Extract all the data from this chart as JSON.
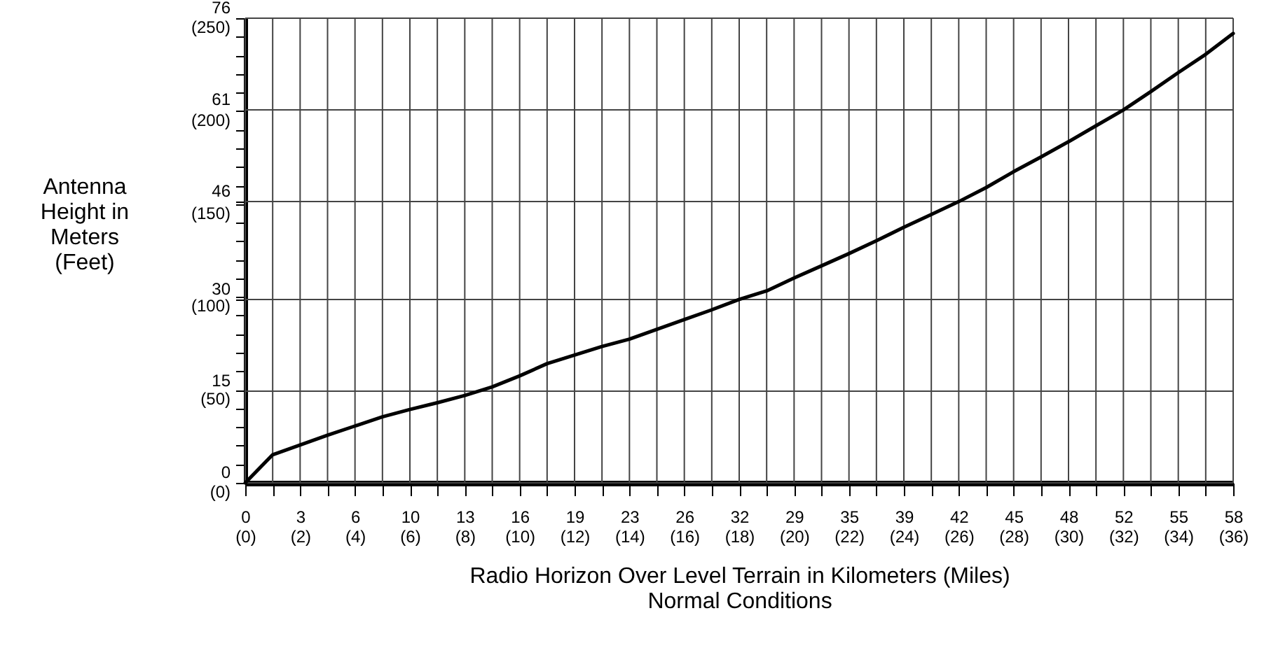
{
  "chart_data": {
    "type": "line",
    "xlabel": "Radio Horizon Over Level Terrain in Kilometers (Miles)\nNormal Conditions",
    "y2label": "Antenna\nHeight in\nMeters\n(Feet)",
    "categories": [
      "0\n(0)",
      null,
      "3\n(2)",
      null,
      "6\n(4)",
      null,
      "10\n(6)",
      null,
      "13\n(8)",
      null,
      "16\n(10)",
      null,
      "19\n(12)",
      null,
      "23\n(14)",
      null,
      "26\n(16)",
      null,
      "32\n(18)",
      null,
      "29\n(20)",
      null,
      "35\n(22)",
      null,
      "39\n(24)",
      null,
      "42\n(26)",
      null,
      "45\n(28)",
      null,
      "48\n(30)",
      null,
      "52\n(32)",
      null,
      "55\n(34)",
      null,
      "58\n(36)"
    ],
    "series": [
      {
        "color": "#000000",
        "values": [
          0,
          4.6,
          6.2,
          7.8,
          9.3,
          10.8,
          12.0,
          13.1,
          14.3,
          15.7,
          17.5,
          19.5,
          20.9,
          22.3,
          23.5,
          25.1,
          26.7,
          28.3,
          30.0,
          31.4,
          33.5,
          35.5,
          37.5,
          39.6,
          41.8,
          43.9,
          46.0,
          48.3,
          50.9,
          53.3,
          55.8,
          58.4,
          61.0,
          64.0,
          67.1,
          70.1,
          73.5
        ]
      }
    ],
    "ylim": [
      0,
      76
    ],
    "yticks": [
      0,
      15,
      30,
      46,
      61,
      76
    ],
    "y2lim": [
      0,
      250
    ],
    "y2ticks": [
      {
        "value": 0,
        "label": "(0)"
      },
      {
        "value": 10,
        "label": null
      },
      {
        "value": 20,
        "label": null
      },
      {
        "value": 30,
        "label": null
      },
      {
        "value": 40,
        "label": null
      },
      {
        "value": 50,
        "label": "(50)"
      },
      {
        "value": 60,
        "label": null
      },
      {
        "value": 70,
        "label": null
      },
      {
        "value": 80,
        "label": null
      },
      {
        "value": 90,
        "label": null
      },
      {
        "value": 100,
        "label": "(100)"
      },
      {
        "value": 110,
        "label": null
      },
      {
        "value": 120,
        "label": null
      },
      {
        "value": 130,
        "label": null
      },
      {
        "value": 140,
        "label": null
      },
      {
        "value": 150,
        "label": "(150)"
      },
      {
        "value": 160,
        "label": null
      },
      {
        "value": 170,
        "label": null
      },
      {
        "value": 180,
        "label": null
      },
      {
        "value": 190,
        "label": null
      },
      {
        "value": 200,
        "label": "(200)"
      },
      {
        "value": 210,
        "label": null
      },
      {
        "value": 220,
        "label": null
      },
      {
        "value": 230,
        "label": null
      },
      {
        "value": 240,
        "label": null
      },
      {
        "value": 250,
        "label": "(250)"
      }
    ],
    "grid": true
  }
}
